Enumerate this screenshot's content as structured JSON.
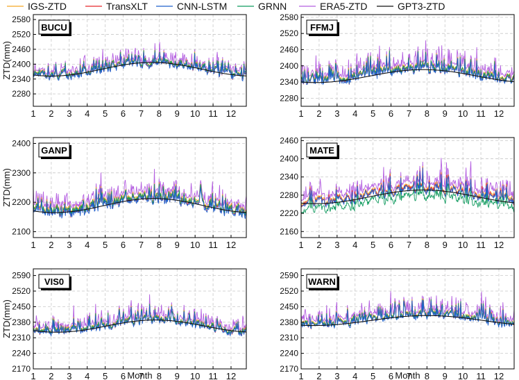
{
  "chart_data": {
    "type": "line",
    "legend": {
      "placement": "top-center",
      "entries": [
        {
          "name": "IGS-ZTD",
          "color": "#f5a623"
        },
        {
          "name": "TransXLT",
          "color": "#e8262a"
        },
        {
          "name": "CNN-LSTM",
          "color": "#1f5fcc"
        },
        {
          "name": "GRNN",
          "color": "#0f9a5e"
        },
        {
          "name": "ERA5-ZTD",
          "color": "#b45ee0"
        },
        {
          "name": "GPT3-ZTD",
          "color": "#111111"
        }
      ]
    },
    "xlabel": "Month",
    "ylabel": "ZTD(mm)",
    "xticks": [
      "1",
      "2",
      "3",
      "4",
      "5",
      "6",
      "7",
      "8",
      "9",
      "10",
      "11",
      "12"
    ],
    "xlim": [
      1,
      12.85
    ],
    "grid": true,
    "panels": [
      {
        "station": "BUCU",
        "ylim": [
          2230,
          2600
        ],
        "yticks": [
          "2280",
          "2340",
          "2400",
          "2460",
          "2520",
          "2580"
        ],
        "gpt3": {
          "base": 2352,
          "amp": 55,
          "peak_month": 7.6,
          "phase_month": 2.0
        },
        "series": {
          "igs": {
            "base": 2360,
            "amp": 55,
            "noise": 26,
            "spike": 55
          },
          "era5": {
            "offset": 8,
            "spike": 40
          },
          "transxlt_offset": -6,
          "cnn_offset": -9,
          "grnn_offset": -2
        }
      },
      {
        "station": "FFMJ",
        "ylim": [
          2250,
          2590
        ],
        "yticks": [
          "2280",
          "2340",
          "2400",
          "2460",
          "2520",
          "2580"
        ],
        "gpt3": {
          "base": 2338,
          "amp": 48,
          "peak_month": 7.8,
          "phase_month": 1.8
        },
        "series": {
          "igs": {
            "base": 2350,
            "amp": 48,
            "noise": 26,
            "spike": 60
          },
          "era5": {
            "offset": 12,
            "spike": 45
          },
          "transxlt_offset": -7,
          "cnn_offset": -10,
          "grnn_offset": -3
        }
      },
      {
        "station": "GANP",
        "ylim": [
          2080,
          2420
        ],
        "yticks": [
          "2100",
          "2200",
          "2300",
          "2400"
        ],
        "gpt3": {
          "base": 2165,
          "amp": 48,
          "peak_month": 7.7,
          "phase_month": 2.2
        },
        "series": {
          "igs": {
            "base": 2175,
            "amp": 50,
            "noise": 25,
            "spike": 50
          },
          "era5": {
            "offset": 12,
            "spike": 40
          },
          "transxlt_offset": -8,
          "cnn_offset": -12,
          "grnn_offset": -4
        }
      },
      {
        "station": "MATE",
        "ylim": [
          2140,
          2470
        ],
        "yticks": [
          "2160",
          "2220",
          "2280",
          "2340",
          "2400",
          "2460"
        ],
        "gpt3": {
          "base": 2252,
          "amp": 45,
          "peak_month": 7.8,
          "phase_month": 1.8
        },
        "series": {
          "igs": {
            "base": 2262,
            "amp": 45,
            "noise": 24,
            "spike": 55
          },
          "era5": {
            "offset": 14,
            "spike": 45
          },
          "transxlt_offset": -4,
          "cnn_offset": -6,
          "grnn_offset": -28
        }
      },
      {
        "station": "VIS0",
        "ylim": [
          2170,
          2620
        ],
        "yticks": [
          "2170",
          "2240",
          "2310",
          "2380",
          "2450",
          "2520",
          "2590"
        ],
        "gpt3": {
          "base": 2335,
          "amp": 55,
          "peak_month": 7.8,
          "phase_month": 2.3
        },
        "series": {
          "igs": {
            "base": 2345,
            "amp": 55,
            "noise": 28,
            "spike": 60
          },
          "era5": {
            "offset": 10,
            "spike": 45
          },
          "transxlt_offset": -7,
          "cnn_offset": -10,
          "grnn_offset": -3
        }
      },
      {
        "station": "WARN",
        "ylim": [
          2170,
          2620
        ],
        "yticks": [
          "2170",
          "2240",
          "2310",
          "2380",
          "2450",
          "2520",
          "2590"
        ],
        "gpt3": {
          "base": 2365,
          "amp": 45,
          "peak_month": 8.0,
          "phase_month": 1.7
        },
        "series": {
          "igs": {
            "base": 2375,
            "amp": 45,
            "noise": 26,
            "spike": 65
          },
          "era5": {
            "offset": 12,
            "spike": 45
          },
          "transxlt_offset": -6,
          "cnn_offset": -9,
          "grnn_offset": -3
        }
      }
    ]
  }
}
